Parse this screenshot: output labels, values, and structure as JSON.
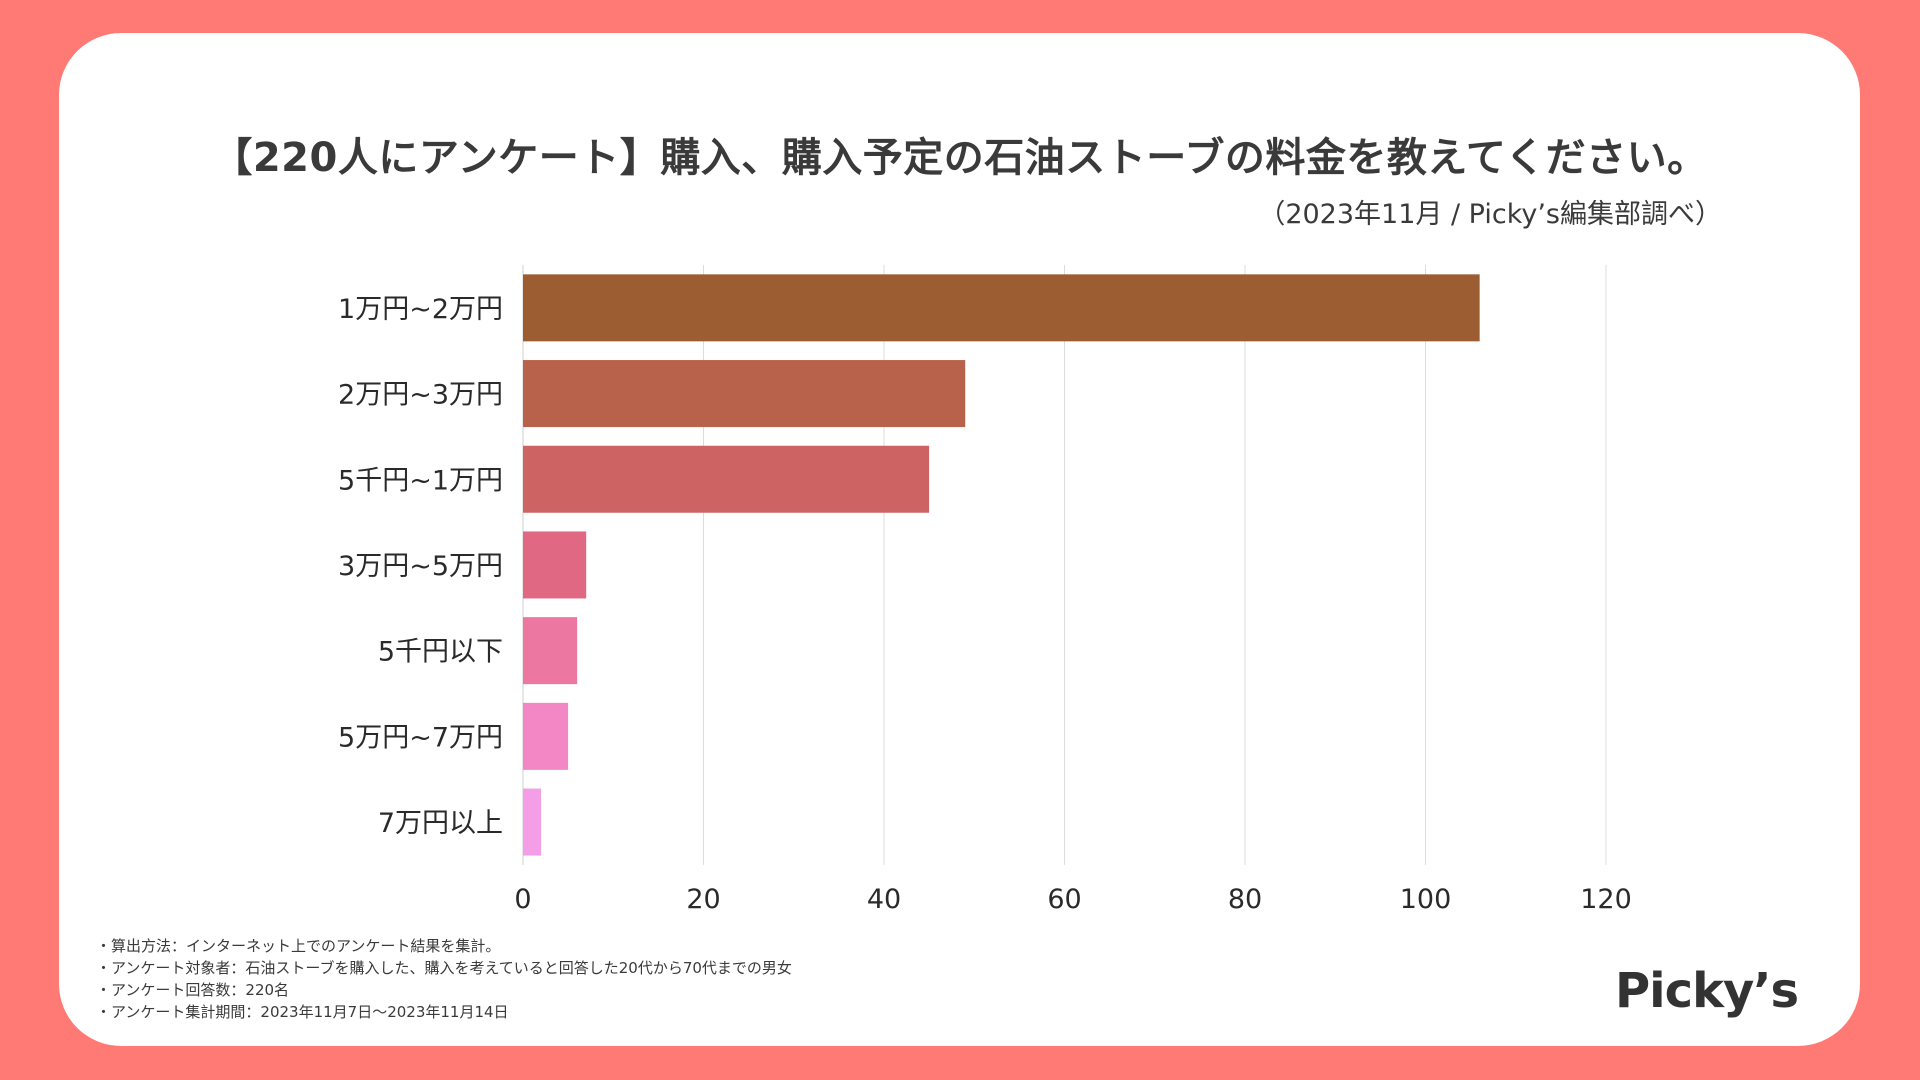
{
  "title": "【220人にアンケート】購入、購入予定の石油ストーブの料金を教えてください。",
  "subtitle": "（2023年11月 / Picky’s編集部調べ）",
  "chart_data": {
    "type": "bar",
    "orientation": "horizontal",
    "categories": [
      "1万円~2万円",
      "2万円~3万円",
      "5千円~1万円",
      "3万円~5万円",
      "5千円以下",
      "5万円~7万円",
      "7万円以上"
    ],
    "values": [
      106,
      49,
      45,
      7,
      6,
      5,
      2
    ],
    "colors": [
      "#9d5d33",
      "#b8624c",
      "#cd6463",
      "#e06882",
      "#ec78a2",
      "#f386c4",
      "#f59ee8"
    ],
    "xlim": [
      0,
      120
    ],
    "xticks": [
      0,
      20,
      40,
      60,
      80,
      100,
      120
    ],
    "grid": true,
    "xlabel": "",
    "ylabel": ""
  },
  "notes": [
    "・算出方法：インターネット上でのアンケート結果を集計。",
    "・アンケート対象者：石油ストーブを購入した、購入を考えていると回答した20代から70代までの男女",
    "・アンケート回答数：220名",
    "・アンケート集計期間：2023年11月7日〜2023年11月14日"
  ],
  "logo": "Picky’s"
}
